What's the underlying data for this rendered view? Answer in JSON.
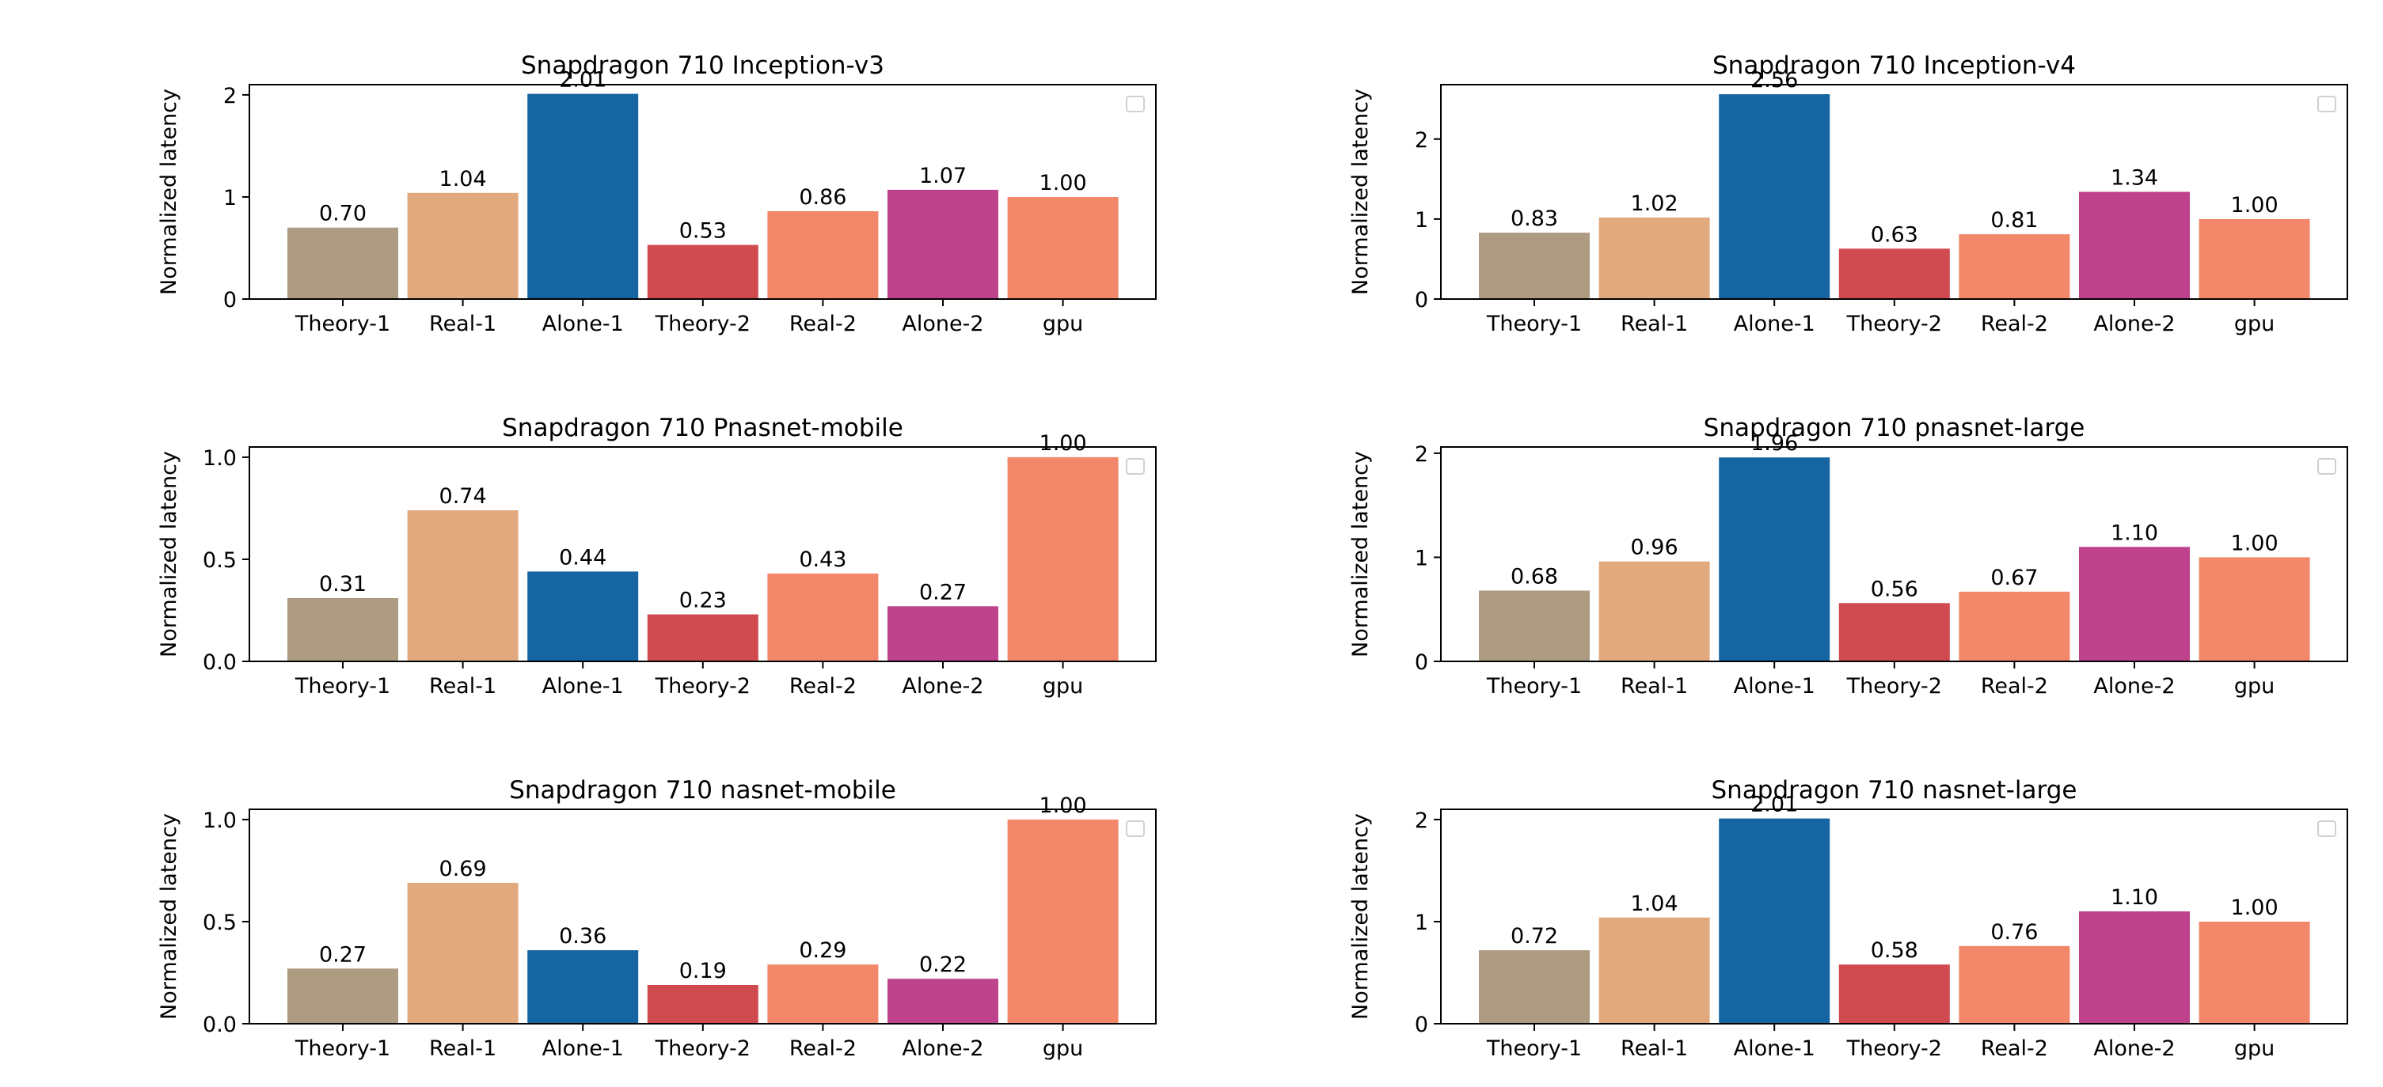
{
  "chart_data": [
    {
      "type": "bar",
      "title": "Snapdragon 710 Inception-v3",
      "ylabel": "Normalized latency",
      "categories": [
        "Theory-1",
        "Real-1",
        "Alone-1",
        "Theory-2",
        "Real-2",
        "Alone-2",
        "gpu"
      ],
      "values": [
        0.7,
        1.04,
        2.01,
        0.53,
        0.86,
        1.07,
        1.0
      ],
      "value_labels": [
        "0.70",
        "1.04",
        "2.01",
        "0.53",
        "0.86",
        "1.07",
        "1.00"
      ],
      "yticks": [
        0,
        1,
        2
      ],
      "ytick_labels": [
        "0",
        "1",
        "2"
      ],
      "ylim": [
        0,
        2.1
      ],
      "grid": false,
      "legend": "top-right (empty)"
    },
    {
      "type": "bar",
      "title": "Snapdragon 710 Inception-v4",
      "ylabel": "Normalized latency",
      "categories": [
        "Theory-1",
        "Real-1",
        "Alone-1",
        "Theory-2",
        "Real-2",
        "Alone-2",
        "gpu"
      ],
      "values": [
        0.83,
        1.02,
        2.56,
        0.63,
        0.81,
        1.34,
        1.0
      ],
      "value_labels": [
        "0.83",
        "1.02",
        "2.56",
        "0.63",
        "0.81",
        "1.34",
        "1.00"
      ],
      "yticks": [
        0,
        1,
        2
      ],
      "ytick_labels": [
        "0",
        "1",
        "2"
      ],
      "ylim": [
        0,
        2.68
      ],
      "grid": false,
      "legend": "top-right (empty)"
    },
    {
      "type": "bar",
      "title": "Snapdragon 710 Pnasnet-mobile",
      "ylabel": "Normalized latency",
      "categories": [
        "Theory-1",
        "Real-1",
        "Alone-1",
        "Theory-2",
        "Real-2",
        "Alone-2",
        "gpu"
      ],
      "values": [
        0.31,
        0.74,
        0.44,
        0.23,
        0.43,
        0.27,
        1.0
      ],
      "value_labels": [
        "0.31",
        "0.74",
        "0.44",
        "0.23",
        "0.43",
        "0.27",
        "1.00"
      ],
      "yticks": [
        0,
        0.5,
        1
      ],
      "ytick_labels": [
        "0.0",
        "0.5",
        "1.0"
      ],
      "ylim": [
        0,
        1.05
      ],
      "grid": false,
      "legend": "top-right (empty)"
    },
    {
      "type": "bar",
      "title": "Snapdragon 710 pnasnet-large",
      "ylabel": "Normalized latency",
      "categories": [
        "Theory-1",
        "Real-1",
        "Alone-1",
        "Theory-2",
        "Real-2",
        "Alone-2",
        "gpu"
      ],
      "values": [
        0.68,
        0.96,
        1.96,
        0.56,
        0.67,
        1.1,
        1.0
      ],
      "value_labels": [
        "0.68",
        "0.96",
        "1.96",
        "0.56",
        "0.67",
        "1.10",
        "1.00"
      ],
      "yticks": [
        0,
        1,
        2
      ],
      "ytick_labels": [
        "0",
        "1",
        "2"
      ],
      "ylim": [
        0,
        2.06
      ],
      "grid": false,
      "legend": "top-right (empty)"
    },
    {
      "type": "bar",
      "title": "Snapdragon 710 nasnet-mobile",
      "ylabel": "Normalized latency",
      "categories": [
        "Theory-1",
        "Real-1",
        "Alone-1",
        "Theory-2",
        "Real-2",
        "Alone-2",
        "gpu"
      ],
      "values": [
        0.27,
        0.69,
        0.36,
        0.19,
        0.29,
        0.22,
        1.0
      ],
      "value_labels": [
        "0.27",
        "0.69",
        "0.36",
        "0.19",
        "0.29",
        "0.22",
        "1.00"
      ],
      "yticks": [
        0,
        0.5,
        1
      ],
      "ytick_labels": [
        "0.0",
        "0.5",
        "1.0"
      ],
      "ylim": [
        0,
        1.05
      ],
      "grid": false,
      "legend": "top-right (empty)"
    },
    {
      "type": "bar",
      "title": "Snapdragon 710 nasnet-large",
      "ylabel": "Normalized latency",
      "categories": [
        "Theory-1",
        "Real-1",
        "Alone-1",
        "Theory-2",
        "Real-2",
        "Alone-2",
        "gpu"
      ],
      "values": [
        0.72,
        1.04,
        2.01,
        0.58,
        0.76,
        1.1,
        1.0
      ],
      "value_labels": [
        "0.72",
        "1.04",
        "2.01",
        "0.58",
        "0.76",
        "1.10",
        "1.00"
      ],
      "yticks": [
        0,
        1,
        2
      ],
      "ytick_labels": [
        "0",
        "1",
        "2"
      ],
      "ylim": [
        0,
        2.1
      ],
      "grid": false,
      "legend": "top-right (empty)"
    }
  ],
  "colors": {
    "bars": [
      "#ad9c81",
      "#e2a97f",
      "#1565a3",
      "#d04b50",
      "#f2876a",
      "#bf428c",
      "#f2876a"
    ],
    "axes": "#000000",
    "legend_border": "#d0d0d0"
  }
}
